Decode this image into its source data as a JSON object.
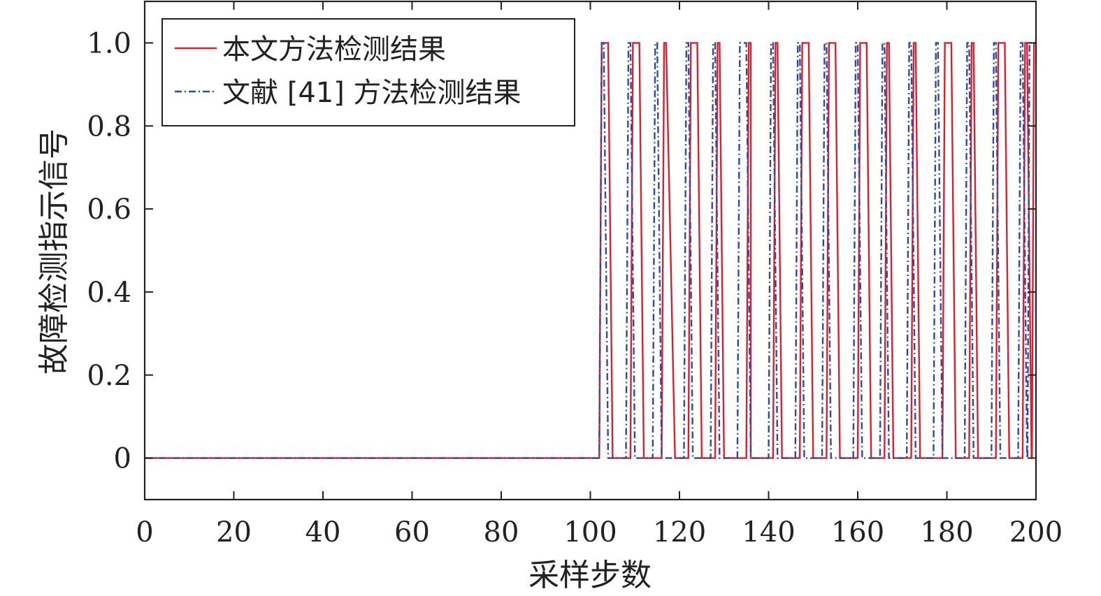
{
  "chart_data": {
    "type": "line",
    "title": "",
    "xlabel": "采样步数",
    "ylabel": "故障检测指示信号",
    "xlim": [
      0,
      200
    ],
    "ylim": [
      -0.1,
      1.1
    ],
    "xticks": [
      0,
      20,
      40,
      60,
      80,
      100,
      120,
      140,
      160,
      180,
      200
    ],
    "xtick_labels": [
      "0",
      "20",
      "40",
      "60",
      "80",
      "100",
      "120",
      "140",
      "160",
      "180",
      "200"
    ],
    "yticks": [
      0,
      0.2,
      0.4,
      0.6,
      0.8,
      1.0
    ],
    "ytick_labels": [
      "0",
      "0.2",
      "0.4",
      "0.6",
      "0.8",
      "1.0"
    ],
    "grid": false,
    "legend_position": "top-left",
    "series": [
      {
        "name": "本文方法检测结果",
        "color": "#d9202f",
        "style": "solid",
        "pulses": [
          [
            102,
            104,
            105
          ],
          [
            109,
            111,
            112
          ],
          [
            116,
            117,
            119
          ],
          [
            122,
            124,
            125
          ],
          [
            128,
            129,
            130
          ],
          [
            135,
            136,
            136
          ],
          [
            141,
            142,
            143
          ],
          [
            147,
            149,
            150
          ],
          [
            153,
            155,
            156
          ],
          [
            160,
            162,
            163
          ],
          [
            166,
            167,
            168
          ],
          [
            172,
            173,
            174
          ],
          [
            179,
            181,
            182
          ],
          [
            185,
            186,
            187
          ],
          [
            191,
            193,
            194
          ],
          [
            197,
            198,
            199
          ]
        ],
        "final": 1
      },
      {
        "name": "文献 [41] 方法检测结果",
        "color": "#2f4aa0",
        "style": "dashdot",
        "pulses": [
          [
            102,
            103,
            104
          ],
          [
            108,
            109,
            110
          ],
          [
            114,
            115,
            116
          ],
          [
            121,
            122,
            123
          ],
          [
            127,
            128,
            129
          ],
          [
            133,
            135,
            136
          ],
          [
            140,
            141,
            142
          ],
          [
            146,
            147,
            148
          ],
          [
            152,
            153,
            154
          ],
          [
            159,
            160,
            161
          ],
          [
            165,
            166,
            167
          ],
          [
            171,
            172,
            173
          ],
          [
            177,
            178,
            179
          ],
          [
            184,
            185,
            186
          ],
          [
            190,
            191,
            192
          ],
          [
            196,
            197,
            198
          ]
        ],
        "final": 1
      }
    ]
  }
}
